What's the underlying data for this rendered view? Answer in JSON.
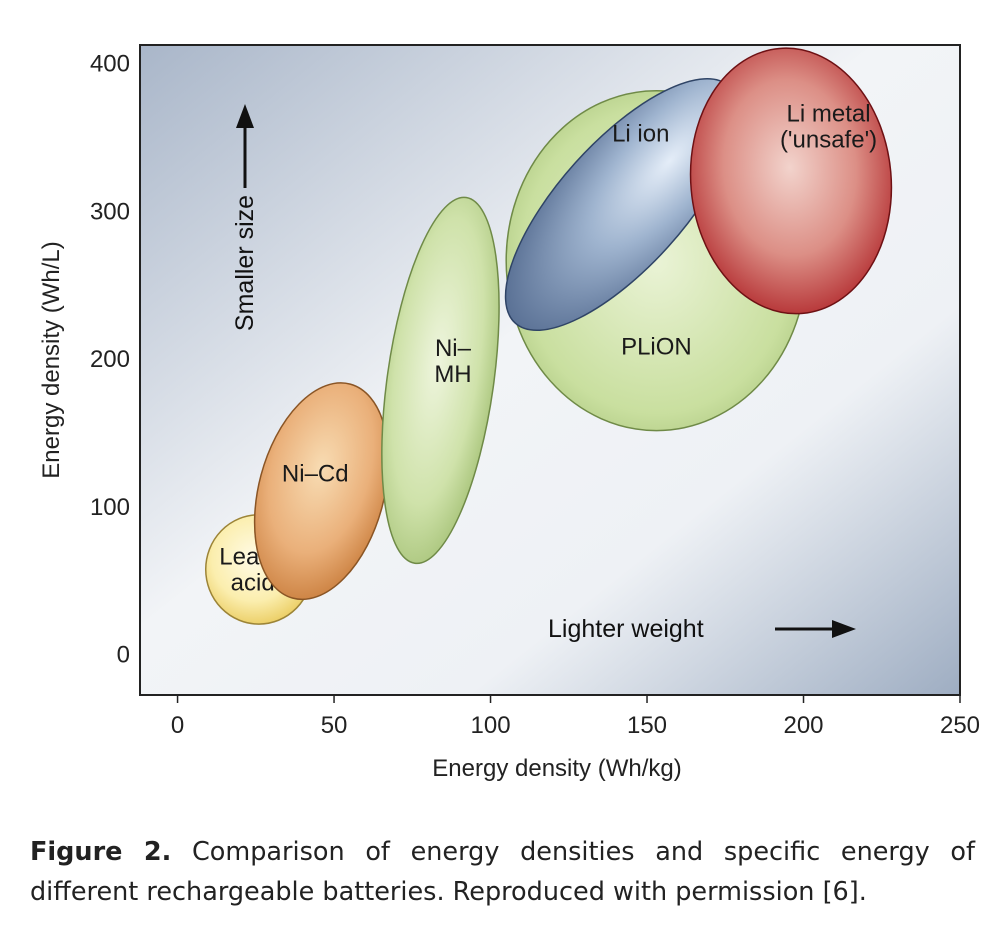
{
  "chart_data": {
    "type": "scatter",
    "xlabel": "Energy density (Wh/kg)",
    "ylabel": "Energy density (Wh/L)",
    "xlim": [
      -12,
      250
    ],
    "ylim": [
      -28,
      412
    ],
    "x_ticks": [
      "0",
      "50",
      "100",
      "150",
      "200",
      "250"
    ],
    "y_ticks": [
      "0",
      "100",
      "200",
      "300",
      "400"
    ],
    "grid": false,
    "background": "gradient-blue-grey",
    "regions": [
      {
        "name": "PLiON",
        "label_lines": [
          "PLiON"
        ],
        "cx": 153,
        "cy": 266,
        "rx": 48,
        "ry": 115,
        "angle": 0,
        "color": "#c7dd9e",
        "label_at": [
          153,
          208
        ]
      },
      {
        "name": "Lead–acid",
        "label_lines": [
          "Lead–",
          "acid"
        ],
        "cx": 26,
        "cy": 57,
        "rx": 17,
        "ry": 37,
        "angle": 0,
        "color": "#f6e08a",
        "label_at": [
          24,
          57
        ]
      },
      {
        "name": "Ni–Cd",
        "label_lines": [
          "Ni–Cd"
        ],
        "cx": 46,
        "cy": 110,
        "rx": 20,
        "ry": 75,
        "angle": 15,
        "color": "#e0a25c",
        "label_at": [
          44,
          122
        ]
      },
      {
        "name": "Ni–MH",
        "label_lines": [
          "Ni–",
          "MH"
        ],
        "cx": 84,
        "cy": 185,
        "rx": 17,
        "ry": 125,
        "angle": 8,
        "color": "#c7dd9e",
        "label_at": [
          88,
          198
        ]
      },
      {
        "name": "Li ion",
        "label_lines": [
          "Li ion"
        ],
        "cx": 142,
        "cy": 304,
        "rx": 20,
        "ry": 108,
        "angle": 42,
        "color": "#6d89ad",
        "label_at": [
          148,
          352
        ]
      },
      {
        "name": "Li metal ('unsafe')",
        "label_lines": [
          "Li metal",
          "('unsafe')"
        ],
        "cx": 196,
        "cy": 320,
        "rx": 32,
        "ry": 90,
        "angle": -5,
        "color": "#c23a3a",
        "label_at": [
          208,
          357
        ]
      }
    ]
  },
  "annotations": {
    "smaller_size": "Smaller size",
    "lighter_weight": "Lighter weight"
  },
  "caption": {
    "label": "Figure 2.",
    "text": " Comparison of energy densities and specific energy of different rechargeable batteries. Reproduced with permission [6]."
  }
}
